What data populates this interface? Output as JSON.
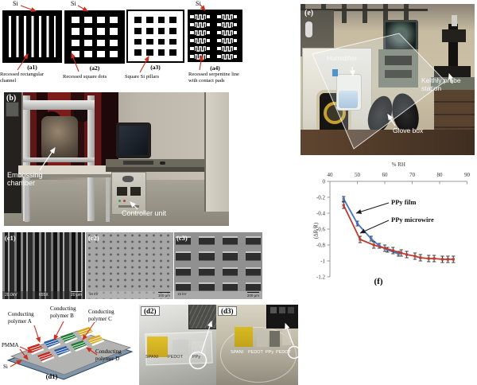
{
  "colors": {
    "arrow_red": "#cf2e1e",
    "series_film_blue": "#4472c4",
    "series_wire_red": "#bf3b2f",
    "polymer_patches": [
      "#c62822",
      "#2458a8",
      "#1e7a34",
      "#d9a81e"
    ]
  },
  "panel_a": {
    "a1": {
      "si": "Si",
      "caption": "(a1)",
      "desc": "Recessed rectangular channel"
    },
    "a2": {
      "si": "Si",
      "caption": "(a2)",
      "desc": "Recessed square dots"
    },
    "a3": {
      "caption": "(a3)",
      "desc": "Square Si pillars"
    },
    "a4": {
      "si": "Si",
      "caption": "(a4)",
      "desc": "Recessed serpentine line with contact pads"
    }
  },
  "panel_b": {
    "label": "(b)",
    "embossing": "Embossing chamber",
    "controller": "Controller unit"
  },
  "panel_c": {
    "c1": {
      "label": "(c1)",
      "kv": "20.0kV",
      "mag": "655X",
      "scale": "20 μm"
    },
    "c2": {
      "label": "(c2)",
      "kv": "15 kV",
      "scale": "100 μm"
    },
    "c3": {
      "label": "(c3)",
      "kv": "15 kV",
      "scale": "200 μm"
    }
  },
  "panel_d1": {
    "caption": "(d1)",
    "labels": {
      "a": "Conducting polymer A",
      "b": "Conducting polymer B",
      "c": "Conducting polymer C",
      "d": "Conducting polymer D",
      "pmma": "PMMA",
      "si": "Si"
    },
    "patch_colors": [
      "#c62822",
      "#2458a8",
      "#1e7a34",
      "#d9a81e"
    ]
  },
  "panel_d2": {
    "label": "(d2)",
    "materials": [
      "SPANI",
      "PEDOT",
      "PPy"
    ]
  },
  "panel_d3": {
    "label": "(d3)",
    "materials": [
      "SPANI",
      "PEDOT",
      "PPy",
      "PEDOT"
    ]
  },
  "panel_e": {
    "label": "(e)",
    "humidifier": "Humidifier",
    "probe": "Keithly probe station",
    "glovebox": "Glove box"
  },
  "chart_data": {
    "type": "line",
    "caption": "(f)",
    "xlabel": "% RH",
    "ylabel": "(ΔR/R)",
    "xlim": [
      40,
      90
    ],
    "ylim": [
      -1.2,
      0
    ],
    "xticks": [
      40,
      50,
      60,
      70,
      80,
      90
    ],
    "ytick_labels": [
      "0",
      "-0.2",
      "-0.4",
      "-0.6",
      "-0.8",
      "-1",
      "-1.2"
    ],
    "grid": false,
    "legend_position": "annotated-arrows",
    "series": [
      {
        "name": "PPy film",
        "color": "#4472c4",
        "marker": "square",
        "error": 0.03,
        "x": [
          45,
          50,
          55,
          58,
          61,
          65
        ],
        "y": [
          -0.22,
          -0.53,
          -0.72,
          -0.81,
          -0.86,
          -0.91
        ]
      },
      {
        "name": "PPy microwire",
        "color": "#bf3b2f",
        "marker": "square",
        "error": 0.04,
        "x": [
          45,
          51,
          56,
          60,
          63,
          66,
          68,
          71,
          73,
          76,
          78,
          81,
          83,
          85
        ],
        "y": [
          -0.3,
          -0.73,
          -0.8,
          -0.84,
          -0.87,
          -0.9,
          -0.92,
          -0.94,
          -0.96,
          -0.97,
          -0.97,
          -0.98,
          -0.98,
          -0.98
        ]
      }
    ],
    "annotations": [
      {
        "text": "PPy film"
      },
      {
        "text": "PPy microwire"
      }
    ]
  }
}
